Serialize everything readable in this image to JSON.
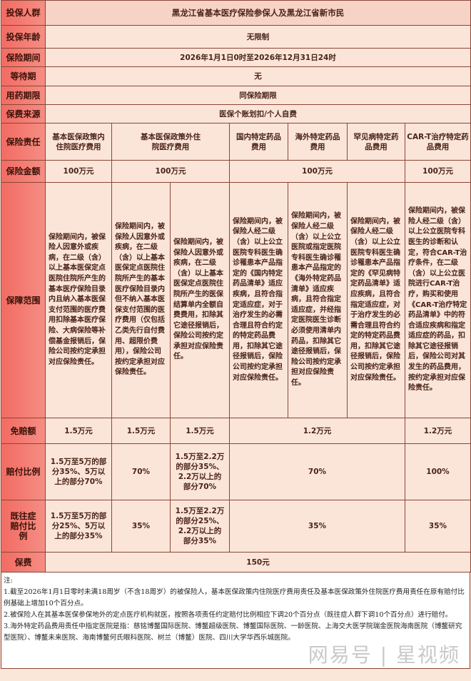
{
  "rows": {
    "group": {
      "label": "投保人群",
      "value": "黑龙江省基本医疗保险参保人及黑龙江省新市民"
    },
    "age": {
      "label": "投保年龄",
      "value": "无限制"
    },
    "period": {
      "label": "保险期间",
      "value": "2026年1月1日0时至2026年12月31日24时"
    },
    "waiting": {
      "label": "等待期",
      "value": "无"
    },
    "drug_period": {
      "label": "用药期限",
      "value": "同保险期限"
    },
    "premium_source": {
      "label": "保费来源",
      "value": "医保个账划扣/个人自费"
    },
    "liability": {
      "label": "保险责任",
      "items": [
        "基本医保政策内住院医疗费用",
        "基本医保政策外住院医疗费用",
        "国内特定药品费用",
        "海外特定药品费用",
        "罕见病特定药品费用",
        "CAR-T治疗特定药品费用"
      ]
    },
    "sum_insured": {
      "label": "保险金额",
      "values": [
        "100万元",
        "100万元",
        "100万元",
        "100万元"
      ]
    },
    "scope": {
      "label": "保障范围",
      "values": [
        "保险期间内，被保险人因意外或疾病，在二级（含）以上基本医保定点医院住院所产生的基本医疗保险目录内且纳入基本医保支付范围的医疗费用扣除基本医疗保险、大病保险等补偿基金报销后，保险公司按约定承担对应保险责任。",
        "保险期间内，被保险人因意外或疾病，在二级（含）以上基本医保定点医院住院所产生的基本医疗保险目录内但不纳入基本医保支付范围的医疗费用（仅包括乙类先行自付费用、超限价费用），保险公司按约定承担对应保险责任。",
        "保险期间内，被保险人因意外或疾病，在二级（含）以上基本医保定点医院住院所产生的医保结算单内全额自费费用，扣除其它途径报销后，保险公司按约定承担对应保险责任。",
        "保险期间内，被保险人经二级（含）以上公立医院专科医生确诊罹患本产品指定的《国内特定药品清单》适应疾病，且符合指定适应症，对于治疗发生的必需合理且符合约定的特定药品费用，扣除其它途径报销后，保险公司按约定承担对应保险责任。",
        "保险期间内，被保险人经二级（含）以上公立医院或指定医院专科医生确诊罹患本产品指定的《海外特定药品清单》适应疾病，且符合指定适应症，并经指定医院医生诊断必须使用清单内药品，扣除其它途径报销后，保险公司按约定承担对应保险责任。",
        "保险期间内，被保险人经二级（含）以上公立医院专科医生确诊罹患本产品指定的《罕见病特定药品清单》适应疾病，且符合指定适应症，对于治疗发生的必需合理且符合约定的特定药品费用，扣除其它途径报销后，保险公司按约定承担对应保险责任。",
        "保险期间内，被保险人经二级（含）以上公立医院专科医生的诊断和认定，符合CAR-T治疗条件，在二级（含）以上公立医院进行CAR-T治疗，购买和使用《CAR-T治疗特定药品清单》中的符合适应疾病和指定适应症的药品，扣除其它途径报销后，保险公司对其发生的药品费用，按约定承担对应保险责任。"
      ]
    },
    "deductible": {
      "label": "免赔额",
      "values": [
        "1.5万元",
        "1.5万元",
        "1.5万元",
        "1.2万元",
        "1.2万元"
      ]
    },
    "ratio": {
      "label": "赔付比例",
      "values": [
        "1.5万至5万的部分35%、5万以上的部分70%",
        "70%",
        "1.5万至2.2万的部分35%、2.2万以上的部分70%",
        "70%",
        "100%"
      ]
    },
    "preexisting_ratio": {
      "label": "既往症赔付比例",
      "values": [
        "1.5万至5万的部分25%、5万以上的部分35%",
        "35%",
        "1.5万至2.2万的部分25%、2.2万以上的部分35%",
        "35%",
        "35%"
      ]
    },
    "premium": {
      "label": "保费",
      "value": "150元"
    }
  },
  "notes": {
    "title": "注:",
    "items": [
      "1.截至2026年1月1日零时未满18周岁（不含18周岁）的被保险人，基本医保政策内住院医疗费用责任及基本医保政策外住院医疗费用责任在原有赔付比例基础上增加10个百分点。",
      "2.被保险人在其基本医保参保地外的定点医疗机构就医，按照各项责任约定赔付比例相应下调20个百分点（既往症人群下调10个百分点）进行赔付。",
      "3.海外特定药品费用责任中指定医院是指：慈铭博鳌国际医院、博鳌超级医院、博鳌国际医院、一龄医院、上海交大医学院瑞金医院海南医院（博鳌研究型医院）、博鳌未来医院、海南博鳌何氏眼科医院、树兰（博鳌）医院、四川大学华西乐城医院。"
    ]
  },
  "watermark": "网易号 | 星视频"
}
